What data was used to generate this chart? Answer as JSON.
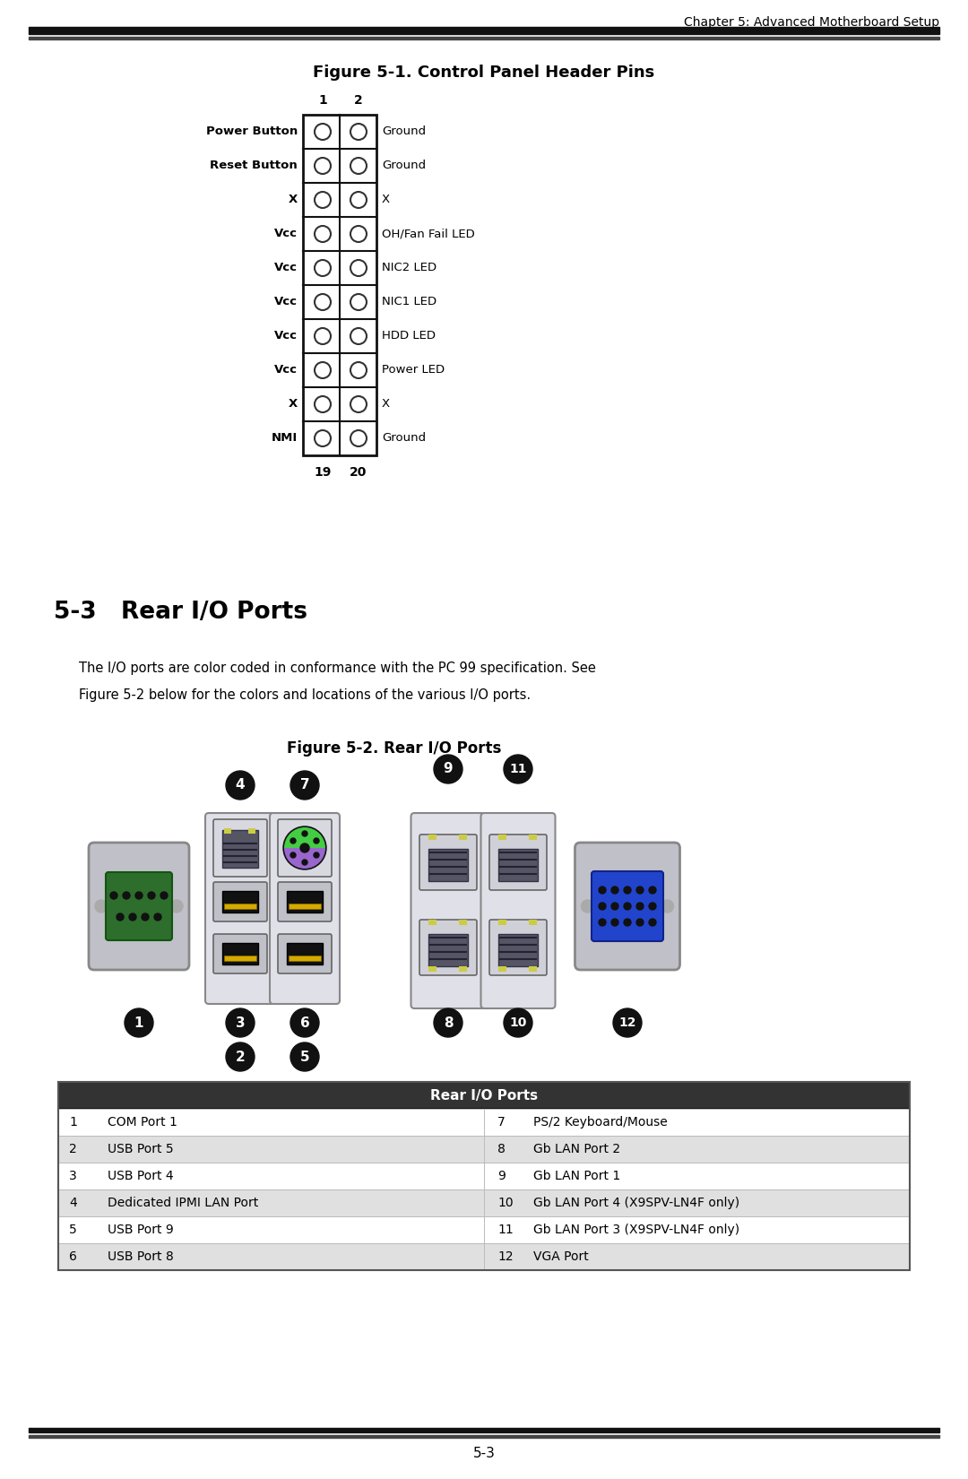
{
  "page_title": "Chapter 5: Advanced Motherboard Setup",
  "fig1_title": "Figure 5-1. Control Panel Header Pins",
  "pin_rows": [
    {
      "left": "Power Button",
      "right": "Ground"
    },
    {
      "left": "Reset Button",
      "right": "Ground"
    },
    {
      "left": "X",
      "right": "X"
    },
    {
      "left": "Vcc",
      "right": "OH/Fan Fail LED"
    },
    {
      "left": "Vcc",
      "right": "NIC2 LED"
    },
    {
      "left": "Vcc",
      "right": "NIC1 LED"
    },
    {
      "left": "Vcc",
      "right": "HDD LED"
    },
    {
      "left": "Vcc",
      "right": "Power LED"
    },
    {
      "left": "X",
      "right": "X"
    },
    {
      "left": "NMI",
      "right": "Ground"
    }
  ],
  "col1_label": "1",
  "col2_label": "2",
  "row_start_label": "19",
  "row_end_label": "20",
  "section_title": "5-3   Rear I/O Ports",
  "section_body_line1": "The I/O ports are color coded in conformance with the PC 99 specification. See",
  "section_body_line2": "Figure 5-2 below for the colors and locations of the various I/O ports.",
  "fig2_title": "Figure 5-2. Rear I/O Ports",
  "table_header": "Rear I/O Ports",
  "table_rows": [
    [
      "1",
      "COM Port 1",
      "7",
      "PS/2 Keyboard/Mouse"
    ],
    [
      "2",
      "USB Port 5",
      "8",
      "Gb LAN Port 2"
    ],
    [
      "3",
      "USB Port 4",
      "9",
      "Gb LAN Port 1"
    ],
    [
      "4",
      "Dedicated IPMI LAN Port",
      "10",
      "Gb LAN Port 4 (X9SPV-LN4F only)"
    ],
    [
      "5",
      "USB Port 9",
      "11",
      "Gb LAN Port 3 (X9SPV-LN4F only)"
    ],
    [
      "6",
      "USB Port 8",
      "12",
      "VGA Port"
    ]
  ],
  "page_number": "5-3",
  "bg_color": "#ffffff",
  "text_color": "#000000",
  "table_alt_color": "#e0e0e0",
  "com_color": "#2d6e2d",
  "vga_color": "#2244cc",
  "usb_inner_color": "#d4aa00",
  "usb_body_color": "#999999",
  "usb_outer_color": "#cccccc",
  "lan_body_color": "#666666",
  "lan_bg_color": "#dddddd",
  "lan_led1_color": "#ffcc00",
  "lan_led2_color": "#cccc88",
  "ps2_purple": "#9966cc",
  "ps2_green": "#44cc44",
  "badge_color": "#111111"
}
